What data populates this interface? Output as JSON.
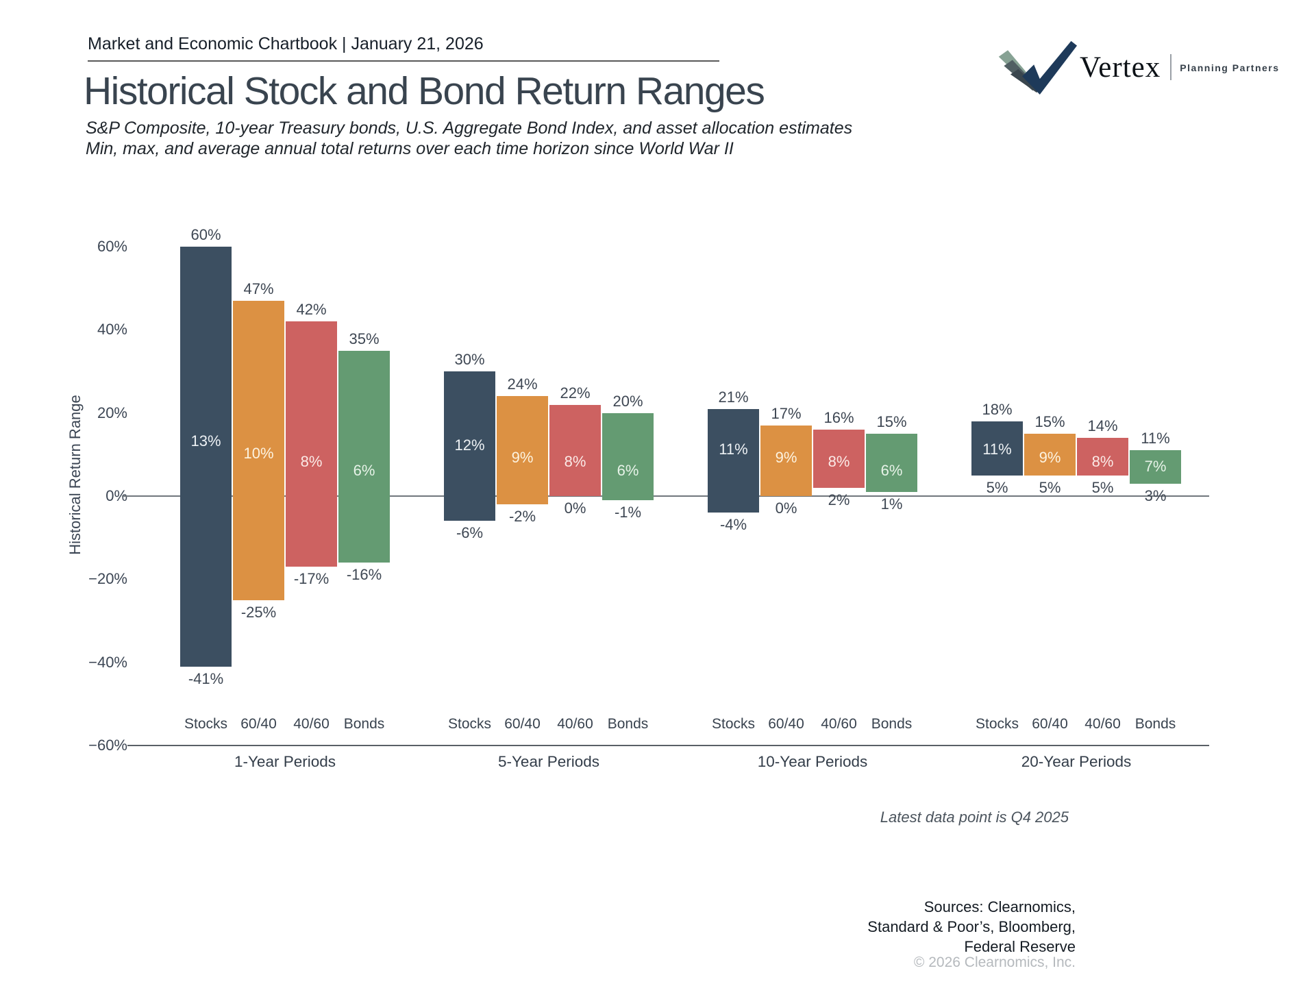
{
  "header": {
    "chartbook_line": "Market and Economic Chartbook | January 21, 2026"
  },
  "logo": {
    "brand": "Vertex",
    "tagline": "Planning Partners"
  },
  "page_title": "Historical Stock and Bond Return Ranges",
  "subtitle_line1": "S&P Composite, 10-year Treasury bonds, U.S. Aggregate Bond Index, and asset allocation estimates",
  "subtitle_line2": "Min, max, and average annual total returns over each time horizon since World War II",
  "chart_data": {
    "type": "bar",
    "subtype": "floating-range-bars",
    "title": "Historical Stock and Bond Return Ranges",
    "ylabel": "Historical Return Range",
    "ylim": [
      -60,
      65
    ],
    "yticks": [
      60,
      40,
      20,
      0,
      -20,
      -40,
      -60
    ],
    "grid": false,
    "legend": "none",
    "categories": [
      "Stocks",
      "60/40",
      "40/60",
      "Bonds"
    ],
    "palette": [
      "#3c4f61",
      "#dc9143",
      "#cd6261",
      "#649b72"
    ],
    "label_tints": [
      "#edf1f4",
      "#fdf3e0",
      "#fbeae7",
      "#e7f3e8"
    ],
    "groups": [
      {
        "label": "1-Year Periods",
        "bars": [
          {
            "asset": "Stocks",
            "max": 60,
            "avg": 13,
            "min": -41
          },
          {
            "asset": "60/40",
            "max": 47,
            "avg": 10,
            "min": -25
          },
          {
            "asset": "40/60",
            "max": 42,
            "avg": 8,
            "min": -17
          },
          {
            "asset": "Bonds",
            "max": 35,
            "avg": 6,
            "min": -16
          }
        ]
      },
      {
        "label": "5-Year Periods",
        "bars": [
          {
            "asset": "Stocks",
            "max": 30,
            "avg": 12,
            "min": -6
          },
          {
            "asset": "60/40",
            "max": 24,
            "avg": 9,
            "min": -2
          },
          {
            "asset": "40/60",
            "max": 22,
            "avg": 8,
            "min": 0
          },
          {
            "asset": "Bonds",
            "max": 20,
            "avg": 6,
            "min": -1
          }
        ]
      },
      {
        "label": "10-Year Periods",
        "bars": [
          {
            "asset": "Stocks",
            "max": 21,
            "avg": 11,
            "min": -4
          },
          {
            "asset": "60/40",
            "max": 17,
            "avg": 9,
            "min": 0
          },
          {
            "asset": "40/60",
            "max": 16,
            "avg": 8,
            "min": 2
          },
          {
            "asset": "Bonds",
            "max": 15,
            "avg": 6,
            "min": 1
          }
        ]
      },
      {
        "label": "20-Year Periods",
        "bars": [
          {
            "asset": "Stocks",
            "max": 18,
            "avg": 11,
            "min": 5
          },
          {
            "asset": "60/40",
            "max": 15,
            "avg": 9,
            "min": 5
          },
          {
            "asset": "40/60",
            "max": 14,
            "avg": 8,
            "min": 5
          },
          {
            "asset": "Bonds",
            "max": 11,
            "avg": 7,
            "min": 3
          }
        ]
      }
    ]
  },
  "footnote": "Latest data point is Q4 2025",
  "sources_line1": "Sources: Clearnomics,",
  "sources_line2": "Standard & Poor’s, Bloomberg,",
  "sources_line3": "Federal Reserve",
  "copyright": "© 2026 Clearnomics, Inc."
}
